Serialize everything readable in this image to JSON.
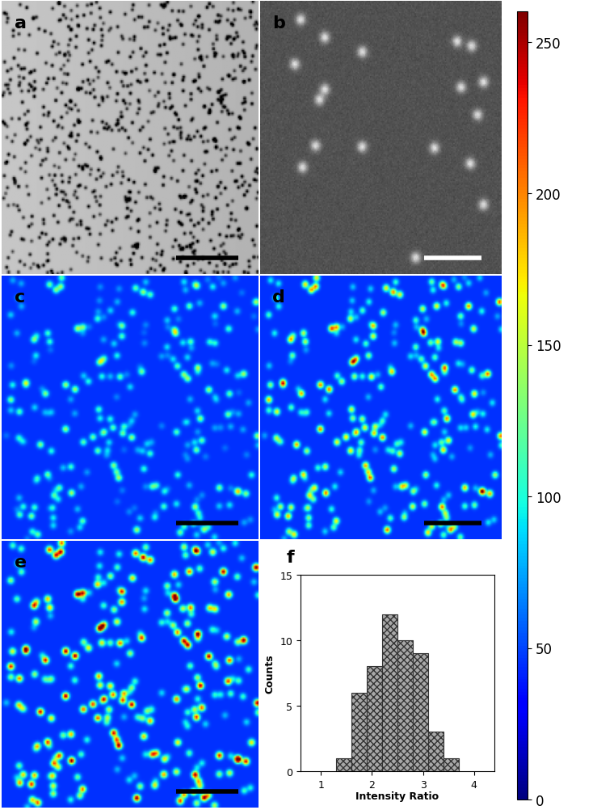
{
  "chart_data": [
    {
      "type": "image",
      "title": "a"
    },
    {
      "type": "image",
      "title": "b"
    },
    {
      "type": "heatmap",
      "title": "c",
      "colorbar_range": [
        0,
        260
      ],
      "colorbar_ticks": [
        0,
        50,
        100,
        150,
        200,
        250
      ]
    },
    {
      "type": "heatmap",
      "title": "d",
      "colorbar_range": [
        0,
        260
      ],
      "colorbar_ticks": [
        0,
        50,
        100,
        150,
        200,
        250
      ]
    },
    {
      "type": "heatmap",
      "title": "e",
      "colorbar_range": [
        0,
        260
      ],
      "colorbar_ticks": [
        0,
        50,
        100,
        150,
        200,
        250
      ]
    },
    {
      "type": "histogram",
      "title": "f",
      "xlabel": "Intensity Ratio",
      "ylabel": "Counts",
      "bins": [
        1.3,
        1.6,
        1.9,
        2.2,
        2.5,
        2.8,
        3.1,
        3.4,
        3.7
      ],
      "counts": [
        1,
        6,
        8,
        12,
        10,
        9,
        3,
        1
      ],
      "xlim": [
        0.6,
        4.4
      ],
      "ylim": [
        0,
        15
      ],
      "xticks": [
        1,
        2,
        3,
        4
      ],
      "yticks": [
        0,
        5,
        10,
        15
      ]
    }
  ]
}
